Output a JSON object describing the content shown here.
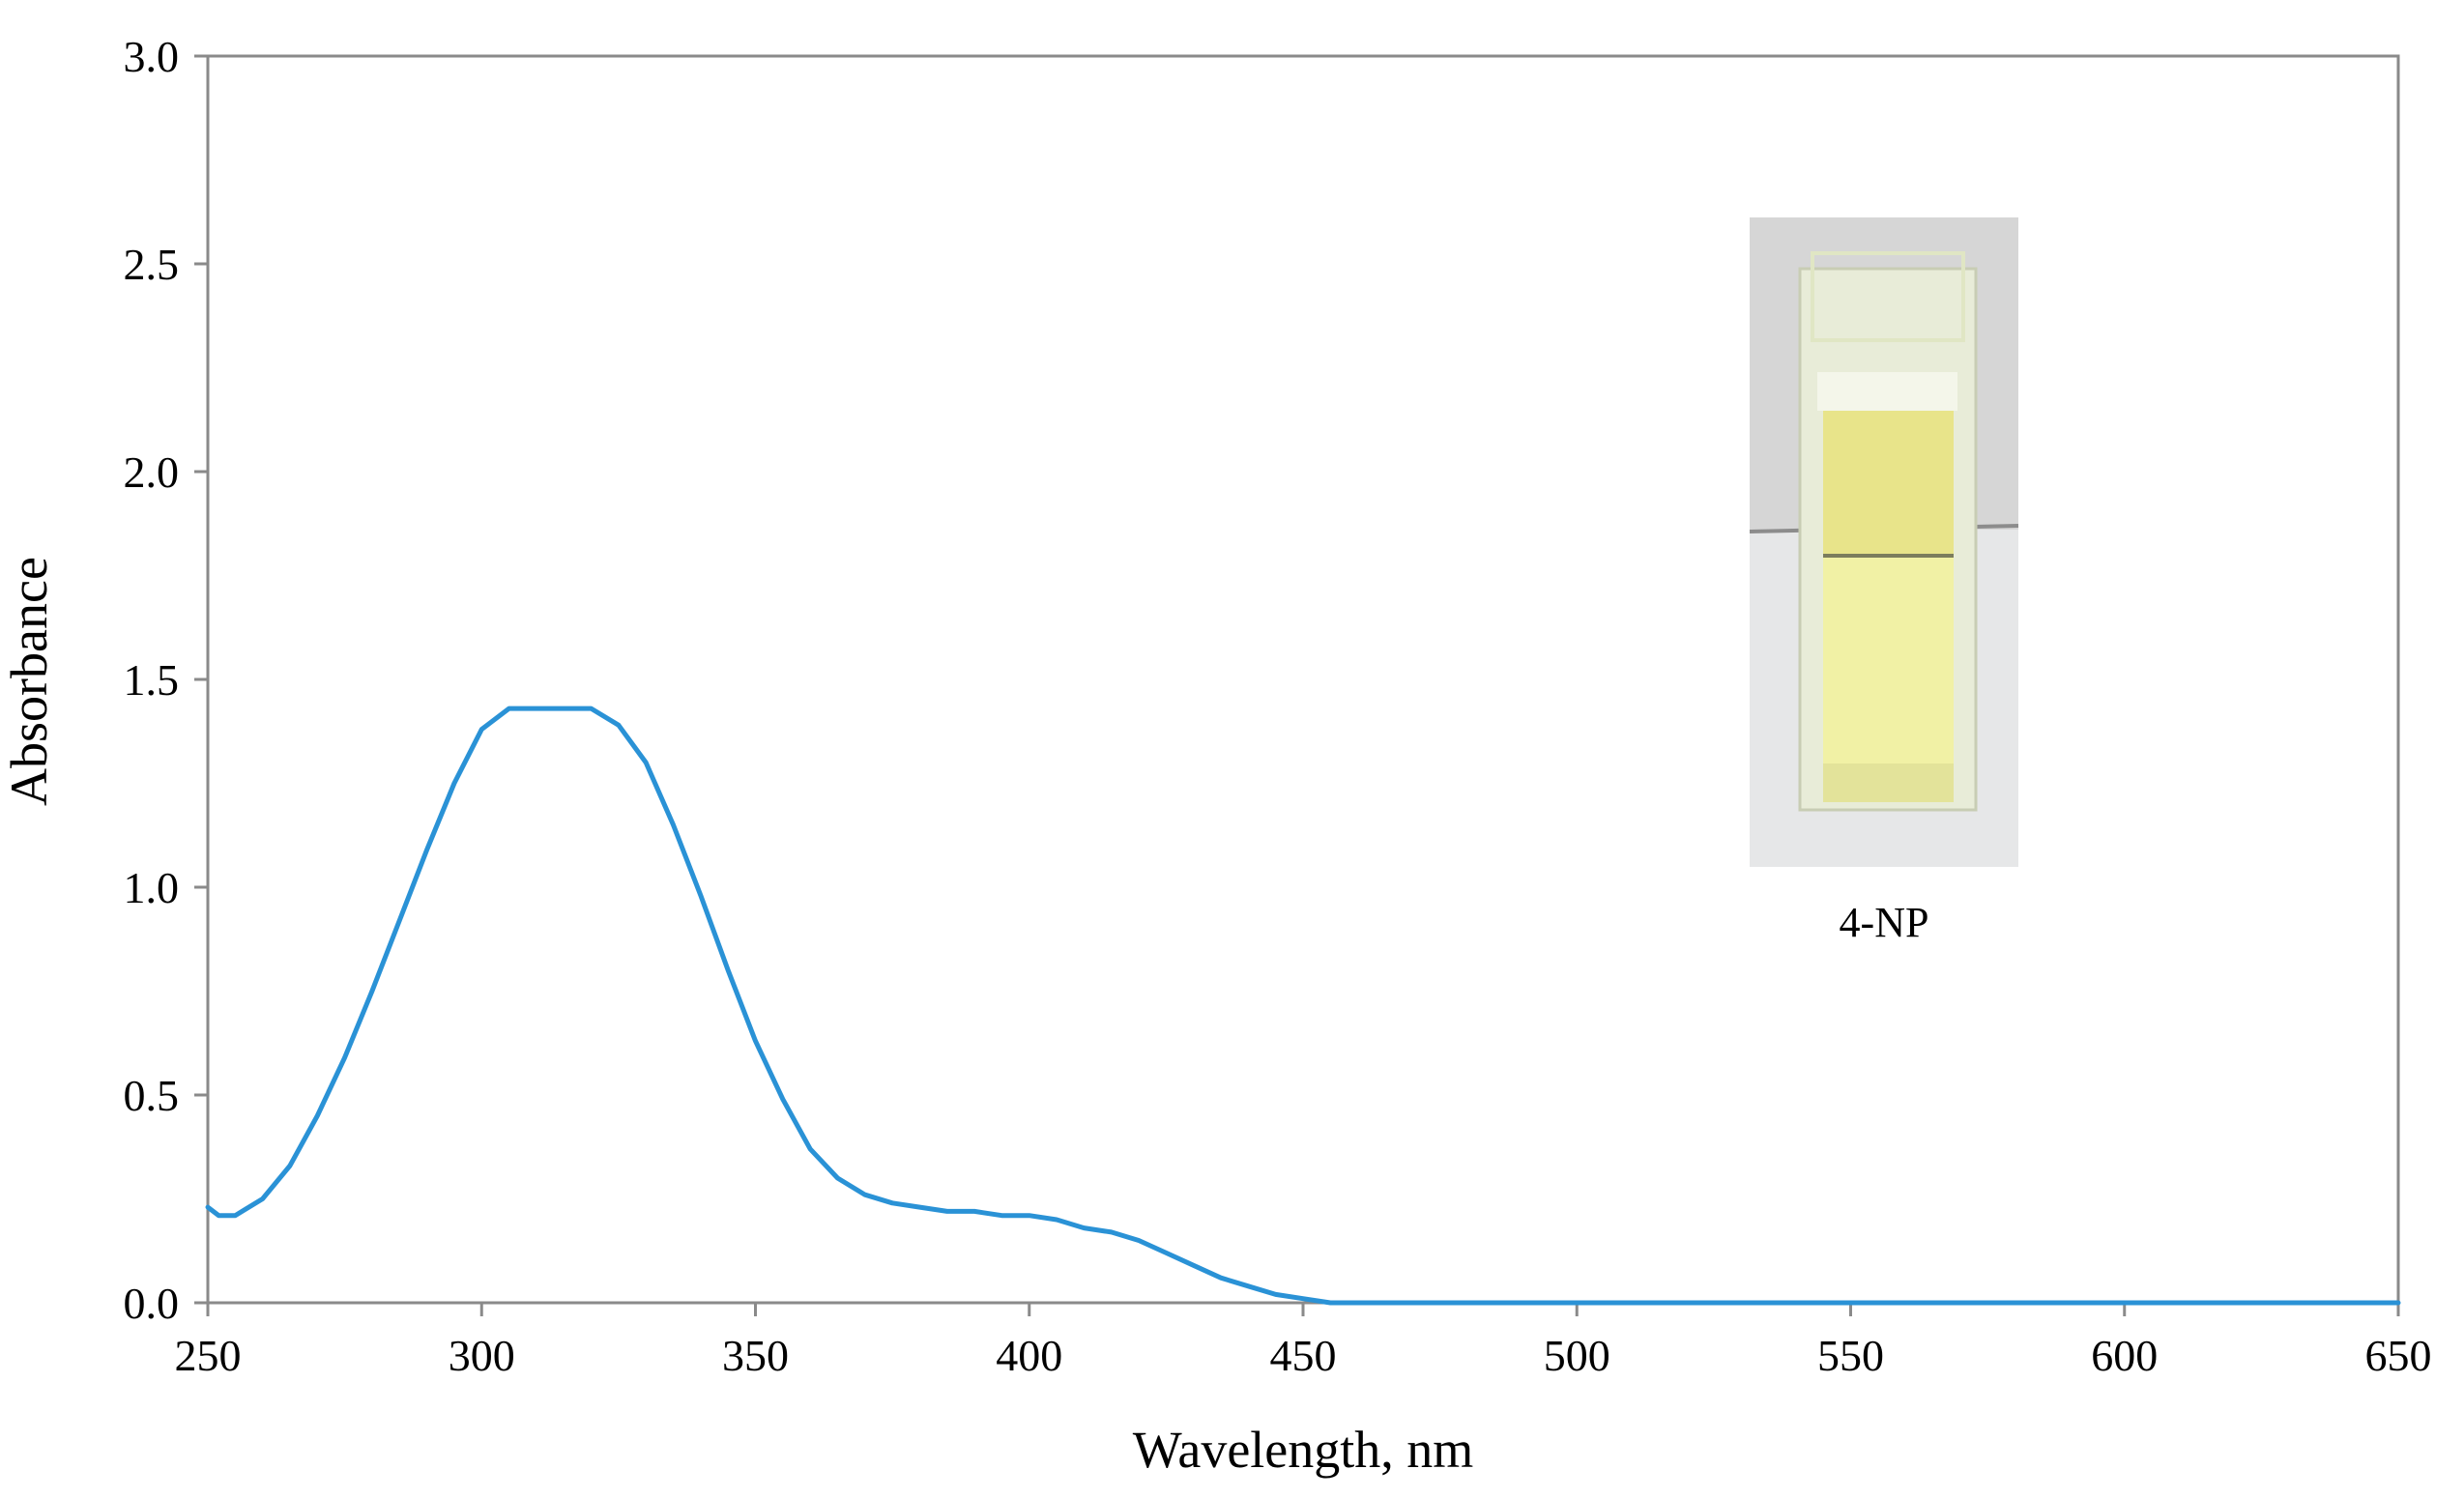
{
  "chart_data": {
    "type": "line",
    "xlabel": "Wavelength, nm",
    "ylabel": "Absorbance",
    "xlim": [
      250,
      650
    ],
    "ylim": [
      0,
      3.0
    ],
    "x_ticks": [
      "250",
      "300",
      "350",
      "400",
      "450",
      "500",
      "550",
      "600",
      "650"
    ],
    "y_ticks": [
      "0.0",
      "0.5",
      "1.0",
      "1.5",
      "2.0",
      "2.5",
      "3.0"
    ],
    "grid": false,
    "legend": "none",
    "series": [
      {
        "color": "#2a92d6",
        "x": [
          250,
          252,
          255,
          260,
          265,
          270,
          275,
          280,
          285,
          290,
          295,
          300,
          305,
          310,
          315,
          320,
          325,
          330,
          335,
          340,
          345,
          350,
          355,
          360,
          365,
          370,
          375,
          380,
          385,
          390,
          395,
          400,
          405,
          410,
          415,
          420,
          425,
          430,
          435,
          440,
          445,
          450,
          455,
          460,
          465,
          470,
          480,
          500,
          550,
          600,
          650
        ],
        "y": [
          0.23,
          0.21,
          0.21,
          0.25,
          0.33,
          0.45,
          0.59,
          0.75,
          0.92,
          1.09,
          1.25,
          1.38,
          1.43,
          1.43,
          1.43,
          1.43,
          1.39,
          1.3,
          1.15,
          0.98,
          0.8,
          0.63,
          0.49,
          0.37,
          0.3,
          0.26,
          0.24,
          0.23,
          0.22,
          0.22,
          0.21,
          0.21,
          0.2,
          0.18,
          0.17,
          0.15,
          0.12,
          0.09,
          0.06,
          0.04,
          0.02,
          0.01,
          0.0,
          0.0,
          0.0,
          0.0,
          0.0,
          0.0,
          0.0,
          0.0,
          0.0
        ]
      }
    ],
    "inset": {
      "label": "4-NP",
      "liquid_color": "#f1f1a5"
    }
  }
}
